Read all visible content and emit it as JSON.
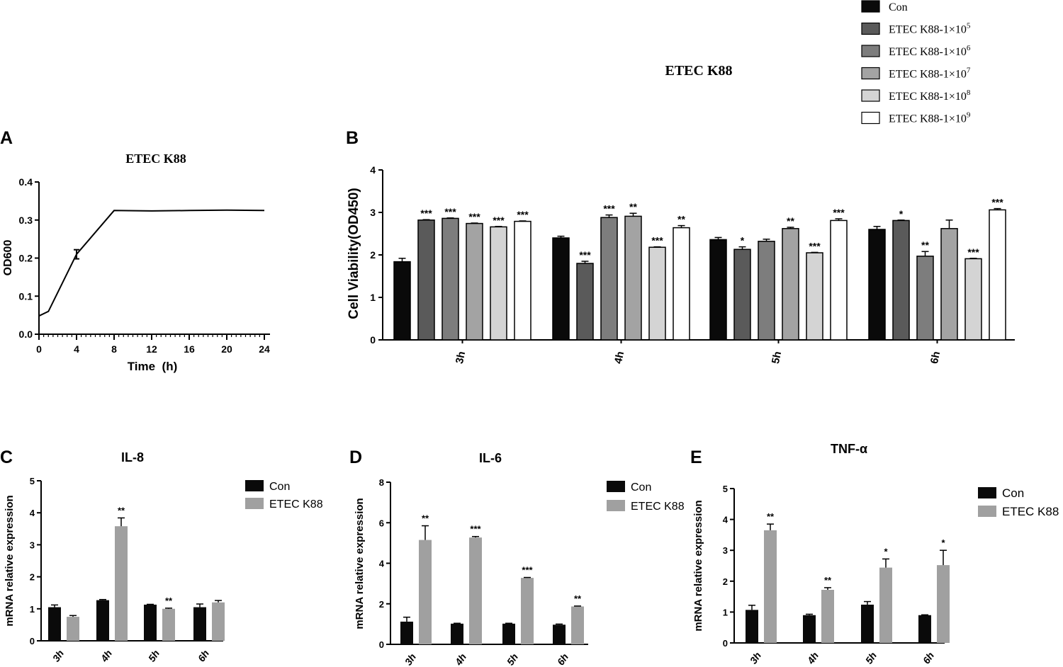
{
  "colors": {
    "ink": "#000000",
    "con": "#0a0a0a",
    "dose5": "#5a5a5a",
    "dose6": "#7d7d7d",
    "dose7": "#a3a3a3",
    "dose8": "#d4d4d4",
    "dose9": "#ffffff",
    "etec": "#a0a0a0"
  },
  "chart_data": [
    {
      "panel": "A",
      "type": "line",
      "title": "ETEC K88",
      "xlabel": "Time  (h)",
      "ylabel": "OD600",
      "xlim": [
        0,
        24
      ],
      "ylim": [
        0,
        0.4
      ],
      "xticks": [
        "0",
        "4",
        "8",
        "12",
        "16",
        "20",
        "24"
      ],
      "yticks": [
        "0.0",
        "0.1",
        "0.2",
        "0.3",
        "0.4"
      ],
      "x": [
        0,
        1,
        4,
        8,
        12,
        16,
        20,
        24
      ],
      "y": [
        0.048,
        0.06,
        0.21,
        0.325,
        0.324,
        0.325,
        0.326,
        0.325
      ],
      "err": [
        0,
        0,
        0.012,
        0,
        0,
        0,
        0,
        0
      ]
    },
    {
      "panel": "B",
      "type": "bar",
      "title": "ETEC K88",
      "xlabel": "",
      "ylabel": "Cell Viability(OD450)",
      "ylim": [
        0,
        4
      ],
      "yticks": [
        "0",
        "1",
        "2",
        "3",
        "4"
      ],
      "categories": [
        "3h",
        "4h",
        "5h",
        "6h"
      ],
      "legend": [
        {
          "base": "Con",
          "sup": ""
        },
        {
          "base": "ETEC K88-1×10",
          "sup": "5"
        },
        {
          "base": "ETEC K88-1×10",
          "sup": "6"
        },
        {
          "base": "ETEC K88-1×10",
          "sup": "7"
        },
        {
          "base": "ETEC K88-1×10",
          "sup": "8"
        },
        {
          "base": "ETEC K88-1×10",
          "sup": "9"
        }
      ],
      "series": [
        {
          "name": "Con",
          "values": [
            1.84,
            2.4,
            2.36,
            2.6
          ],
          "err": [
            0.08,
            0.04,
            0.05,
            0.07
          ],
          "sig": [
            "",
            "",
            "",
            ""
          ]
        },
        {
          "name": "ETEC K88-1×10^5",
          "values": [
            2.82,
            1.8,
            2.13,
            2.81
          ],
          "err": [
            0.01,
            0.05,
            0.06,
            0.01
          ],
          "sig": [
            "***",
            "***",
            "*",
            "*"
          ]
        },
        {
          "name": "ETEC K88-1×10^6",
          "values": [
            2.86,
            2.88,
            2.32,
            1.97
          ],
          "err": [
            0.01,
            0.06,
            0.05,
            0.11
          ],
          "sig": [
            "***",
            "***",
            "",
            "**"
          ]
        },
        {
          "name": "ETEC K88-1×10^7",
          "values": [
            2.74,
            2.91,
            2.62,
            2.62
          ],
          "err": [
            0.01,
            0.07,
            0.03,
            0.2
          ],
          "sig": [
            "***",
            "**",
            "**",
            ""
          ]
        },
        {
          "name": "ETEC K88-1×10^8",
          "values": [
            2.66,
            2.18,
            2.05,
            1.91
          ],
          "err": [
            0.01,
            0.01,
            0.01,
            0.01
          ],
          "sig": [
            "***",
            "***",
            "***",
            "***"
          ]
        },
        {
          "name": "ETEC K88-1×10^9",
          "values": [
            2.79,
            2.64,
            2.81,
            3.06
          ],
          "err": [
            0.01,
            0.05,
            0.04,
            0.03
          ],
          "sig": [
            "***",
            "**",
            "***",
            "***"
          ]
        }
      ]
    },
    {
      "panel": "C",
      "type": "bar",
      "title": "IL-8",
      "ylabel": "mRNA relative expression",
      "ylim": [
        0,
        5
      ],
      "yticks": [
        "0",
        "1",
        "2",
        "3",
        "4",
        "5"
      ],
      "categories": [
        "3h",
        "4h",
        "5h",
        "6h"
      ],
      "legend": [
        "Con",
        "ETEC K88"
      ],
      "series": [
        {
          "name": "Con",
          "values": [
            1.05,
            1.27,
            1.13,
            1.05
          ],
          "err": [
            0.07,
            0.02,
            0.01,
            0.1
          ],
          "sig": [
            "",
            "",
            "",
            ""
          ]
        },
        {
          "name": "ETEC K88",
          "values": [
            0.75,
            3.58,
            1.0,
            1.2
          ],
          "err": [
            0.04,
            0.26,
            0.02,
            0.06
          ],
          "sig": [
            "",
            "**",
            "**",
            ""
          ]
        }
      ]
    },
    {
      "panel": "D",
      "type": "bar",
      "title": "IL-6",
      "ylabel": "mRNA relative expression",
      "ylim": [
        0,
        8
      ],
      "yticks": [
        "0",
        "2",
        "4",
        "6",
        "8"
      ],
      "categories": [
        "3h",
        "4h",
        "5h",
        "6h"
      ],
      "legend": [
        "Con",
        "ETEC K88"
      ],
      "series": [
        {
          "name": "Con",
          "values": [
            1.12,
            1.02,
            1.02,
            0.97
          ],
          "err": [
            0.22,
            0.02,
            0.02,
            0.03
          ],
          "sig": [
            "",
            "",
            "",
            ""
          ]
        },
        {
          "name": "ETEC K88",
          "values": [
            5.15,
            5.27,
            3.28,
            1.87
          ],
          "err": [
            0.7,
            0.05,
            0.02,
            0.02
          ],
          "sig": [
            "**",
            "***",
            "***",
            "**"
          ]
        }
      ]
    },
    {
      "panel": "E",
      "type": "bar",
      "title": "TNF-α",
      "ylabel": "mRNA relative expression",
      "ylim": [
        0,
        5
      ],
      "yticks": [
        "0",
        "1",
        "2",
        "3",
        "4",
        "5"
      ],
      "categories": [
        "3h",
        "4h",
        "5h",
        "6h"
      ],
      "legend": [
        "Con",
        "ETEC K88"
      ],
      "series": [
        {
          "name": "Con",
          "values": [
            1.07,
            0.9,
            1.24,
            0.9
          ],
          "err": [
            0.15,
            0.03,
            0.1,
            0.01
          ],
          "sig": [
            "",
            "",
            "",
            ""
          ]
        },
        {
          "name": "ETEC K88",
          "values": [
            3.65,
            1.72,
            2.44,
            2.52
          ],
          "err": [
            0.2,
            0.07,
            0.28,
            0.48
          ],
          "sig": [
            "**",
            "**",
            "*",
            "*"
          ]
        }
      ]
    }
  ]
}
